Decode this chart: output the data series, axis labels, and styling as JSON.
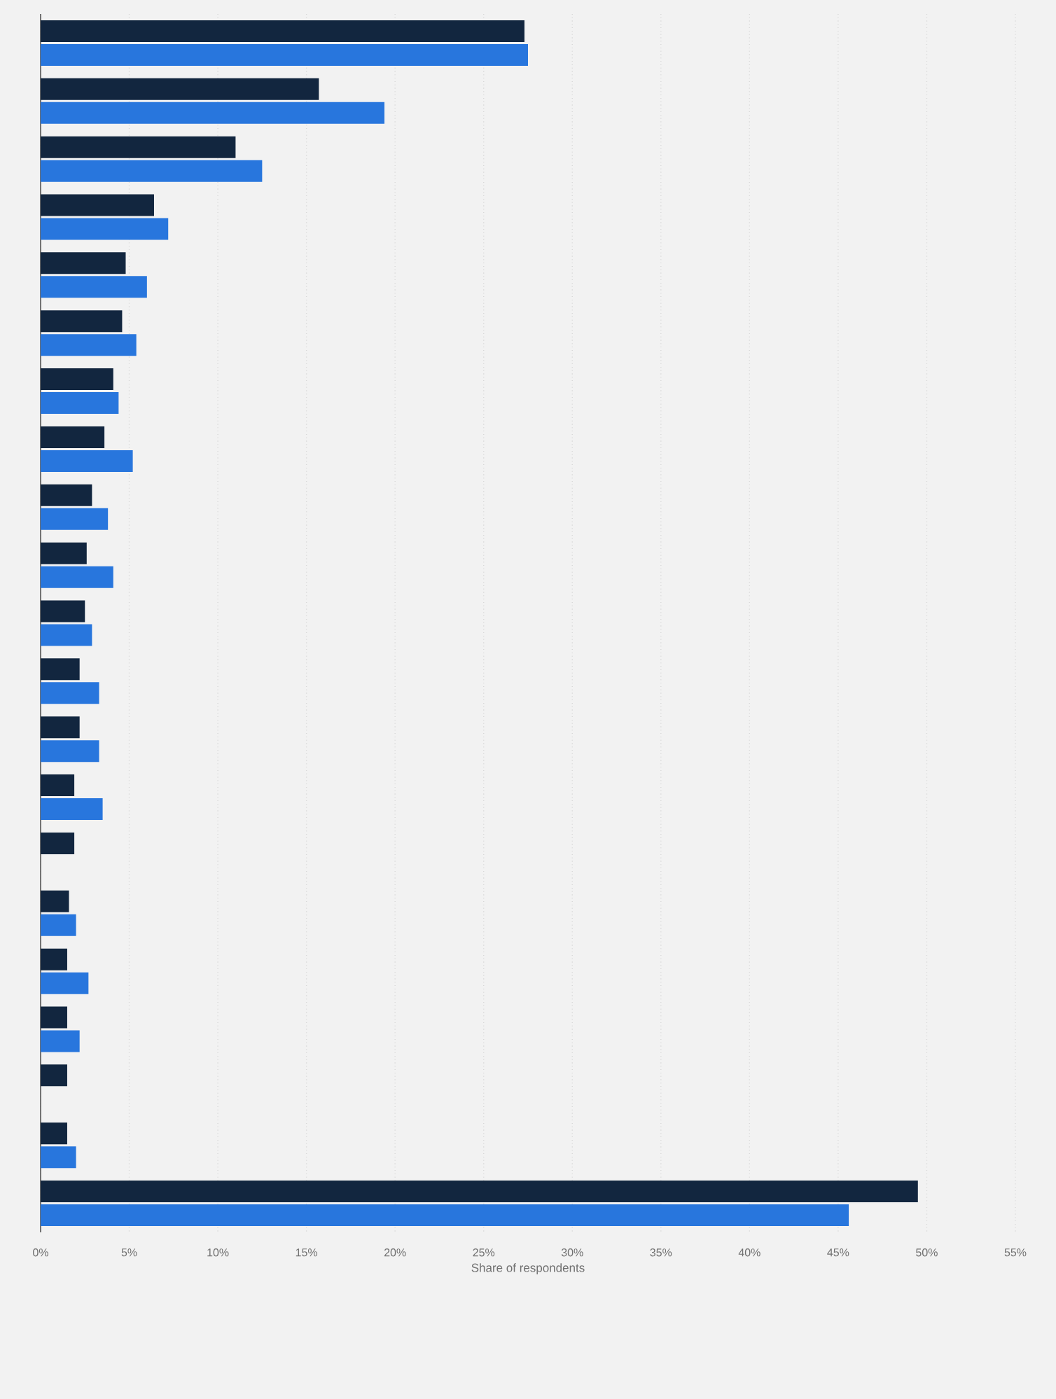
{
  "chart_data": {
    "type": "bar",
    "orientation": "horizontal",
    "categories": [
      null,
      null,
      null,
      null,
      null,
      null,
      null,
      null,
      null,
      null,
      null,
      null,
      null,
      null,
      null,
      null,
      null,
      null,
      null,
      null,
      null
    ],
    "series": [
      {
        "color": "#12263f",
        "values": [
          27.3,
          15.7,
          11,
          6.4,
          4.8,
          4.6,
          4.1,
          3.6,
          2.9,
          2.6,
          2.5,
          2.2,
          2.2,
          1.9,
          1.9,
          1.6,
          1.5,
          1.5,
          1.5,
          1.5,
          49.5
        ]
      },
      {
        "color": "#2876dd",
        "values": [
          27.5,
          19.4,
          12.5,
          7.2,
          6,
          5.4,
          4.4,
          5.2,
          3.8,
          4.1,
          2.9,
          3.3,
          3.3,
          3.5,
          null,
          2,
          2.7,
          2.2,
          null,
          2,
          45.6
        ]
      }
    ],
    "xlabel": "Share of respondents",
    "xlim": [
      0,
      55
    ],
    "xticks": [
      {
        "value": 0,
        "label": "0%"
      },
      {
        "value": 5,
        "label": "5%"
      },
      {
        "value": 10,
        "label": "10%"
      },
      {
        "value": 15,
        "label": "15%"
      },
      {
        "value": 20,
        "label": "20%"
      },
      {
        "value": 25,
        "label": "25%"
      },
      {
        "value": 30,
        "label": "30%"
      },
      {
        "value": 35,
        "label": "35%"
      },
      {
        "value": 40,
        "label": "40%"
      },
      {
        "value": 45,
        "label": "45%"
      },
      {
        "value": 50,
        "label": "50%"
      },
      {
        "value": 55,
        "label": "55%"
      }
    ],
    "grid": "x",
    "tick_labels": "x"
  }
}
